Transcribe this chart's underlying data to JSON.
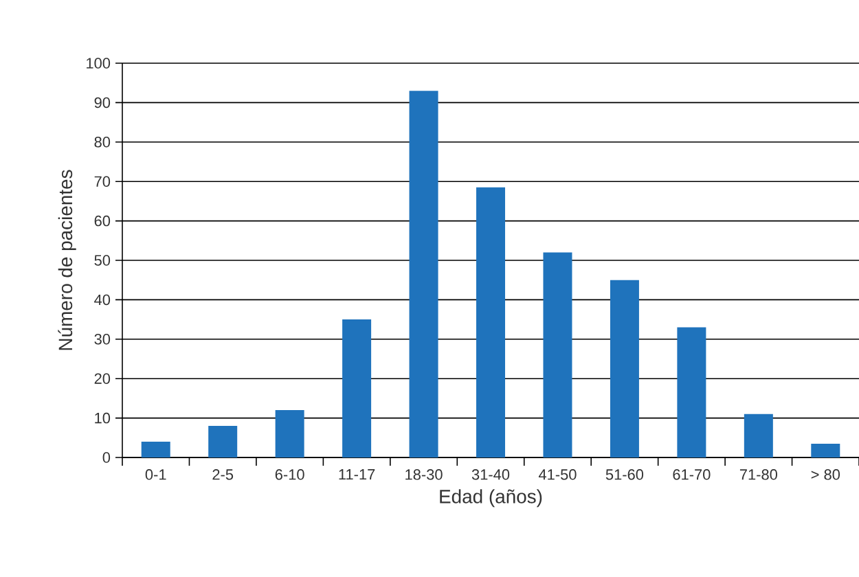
{
  "chart_data": {
    "type": "bar",
    "xlabel": "Edad (años)",
    "ylabel": "Número de pacientes",
    "categories": [
      "0-1",
      "2-5",
      "6-10",
      "11-17",
      "18-30",
      "31-40",
      "41-50",
      "51-60",
      "61-70",
      "71-80",
      "> 80"
    ],
    "values": [
      4,
      8,
      12,
      35,
      93,
      68.5,
      52,
      45,
      33,
      11,
      3.5
    ],
    "color": "#1f73bc",
    "ylim": [
      0,
      100
    ],
    "yticks": [
      0,
      10,
      20,
      30,
      40,
      50,
      60,
      70,
      80,
      90,
      100
    ],
    "grid": "y"
  }
}
